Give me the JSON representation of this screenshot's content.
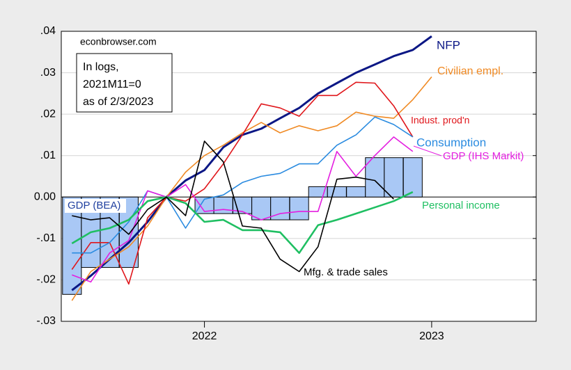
{
  "chart_data": {
    "type": "line",
    "source": "econbrowser.com",
    "annotation": [
      "In logs,",
      "2021M11=0",
      "as of 2/3/2023"
    ],
    "x": [
      2021.417,
      2021.5,
      2021.583,
      2021.667,
      2021.75,
      2021.833,
      2021.917,
      2022.0,
      2022.083,
      2022.167,
      2022.25,
      2022.333,
      2022.417,
      2022.5,
      2022.583,
      2022.667,
      2022.75,
      2022.833,
      2022.917,
      2023.0
    ],
    "xlim": [
      2021.37,
      2023.46
    ],
    "xticks": [
      2022,
      2023
    ],
    "ylim": [
      -0.03,
      0.04
    ],
    "yticks": [
      {
        "value": 0.04,
        "label": ".04"
      },
      {
        "value": 0.03,
        "label": ".03"
      },
      {
        "value": 0.02,
        "label": ".02"
      },
      {
        "value": 0.01,
        "label": ".01"
      },
      {
        "value": 0,
        "label": "0.00"
      },
      {
        "value": -0.01,
        "label": "-.01"
      },
      {
        "value": -0.02,
        "label": "-.02"
      },
      {
        "value": -0.03,
        "label": "-.03"
      }
    ],
    "grid": true,
    "bars": {
      "name": "GDP (BEA)",
      "color": "#a9c8f5",
      "values": [
        -0.0235,
        -0.017,
        -0.017,
        -0.017,
        0,
        0,
        0,
        -0.004,
        -0.004,
        -0.004,
        -0.0055,
        -0.0055,
        -0.0055,
        0.0025,
        0.0025,
        0.0025,
        0.0095,
        0.0095,
        0.0095,
        null
      ]
    },
    "series": [
      {
        "name": "NFP",
        "color": "#0b1785",
        "width": 3,
        "values": [
          -0.0225,
          -0.019,
          -0.015,
          -0.011,
          -0.006,
          0,
          0.004,
          0.0065,
          0.012,
          0.015,
          0.0165,
          0.019,
          0.0215,
          0.025,
          0.0275,
          0.03,
          0.032,
          0.034,
          0.0355,
          0.0388
        ]
      },
      {
        "name": "Civilian empl.",
        "color": "#f08a24",
        "width": 1.6,
        "values": [
          -0.025,
          -0.018,
          -0.015,
          -0.012,
          -0.007,
          0,
          0.006,
          0.01,
          0.0125,
          0.0155,
          0.018,
          0.0155,
          0.0172,
          0.016,
          0.0172,
          0.0205,
          0.0195,
          0.019,
          0.0235,
          0.029
        ]
      },
      {
        "name": "Indust. prod'n",
        "color": "#e0161b",
        "width": 1.6,
        "values": [
          -0.0175,
          -0.011,
          -0.011,
          -0.021,
          -0.005,
          0,
          -0.001,
          0.002,
          0.008,
          0.015,
          0.0225,
          0.0215,
          0.0195,
          0.0245,
          0.0245,
          0.0277,
          0.0275,
          0.022,
          0.0145,
          null
        ]
      },
      {
        "name": "Consumption",
        "color": "#2a8be0",
        "width": 1.6,
        "values": [
          -0.0135,
          -0.0135,
          -0.011,
          -0.006,
          0.0015,
          0,
          -0.0075,
          -0.0005,
          0.0005,
          0.0035,
          0.005,
          0.0057,
          0.008,
          0.008,
          0.0125,
          0.015,
          0.0193,
          0.0175,
          0.0145,
          null
        ]
      },
      {
        "name": "GDP (IHS Markit)",
        "color": "#e41ee0",
        "width": 1.6,
        "values": [
          -0.0188,
          -0.0205,
          -0.0135,
          -0.0105,
          0.0015,
          0,
          0.003,
          -0.0035,
          -0.003,
          -0.0035,
          -0.0055,
          -0.004,
          -0.0035,
          -0.0035,
          0.011,
          0.005,
          0.01,
          0.0145,
          0.011,
          null
        ]
      },
      {
        "name": "Personal income",
        "color": "#1fbf62",
        "width": 2.6,
        "values": [
          -0.0112,
          -0.0085,
          -0.0075,
          -0.0055,
          -0.001,
          0,
          -0.0015,
          -0.006,
          -0.0055,
          -0.008,
          -0.008,
          -0.0085,
          -0.0135,
          -0.0068,
          -0.0055,
          -0.004,
          -0.0025,
          -0.001,
          0.0012,
          null
        ]
      },
      {
        "name": "Mfg. & trade sales",
        "color": "#000000",
        "width": 1.6,
        "values": [
          -0.0045,
          -0.0055,
          -0.005,
          -0.009,
          -0.003,
          0,
          -0.0045,
          0.0135,
          0.0085,
          -0.007,
          -0.0075,
          -0.015,
          -0.018,
          -0.012,
          0.0043,
          0.0048,
          0.004,
          -0.0005,
          null,
          null
        ]
      }
    ]
  }
}
